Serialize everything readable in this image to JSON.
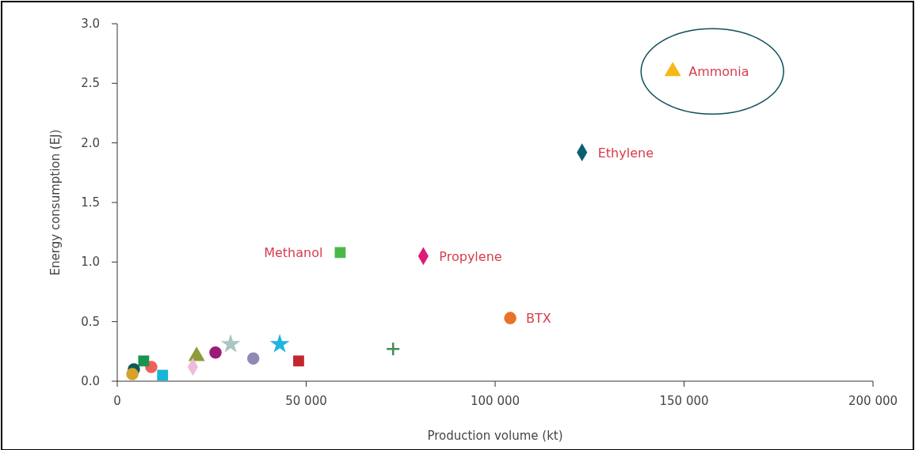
{
  "chart_data": {
    "type": "scatter",
    "xlabel": "Production volume (kt)",
    "ylabel": "Energy consumption (EJ)",
    "xlim": [
      0,
      200000
    ],
    "ylim": [
      0,
      3.0
    ],
    "xticks": [
      0,
      {
        "value": 50000,
        "label": "50 000"
      },
      {
        "value": 100000,
        "label": "100 000"
      },
      {
        "value": 150000,
        "label": "150 000"
      },
      {
        "value": 200000,
        "label": "200 000"
      }
    ],
    "yticks": [
      {
        "value": 0,
        "label": "0.0"
      },
      {
        "value": 0.5,
        "label": "0.5"
      },
      {
        "value": 1,
        "label": "1.0"
      },
      {
        "value": 1.5,
        "label": "1.5"
      },
      {
        "value": 2,
        "label": "2.0"
      },
      {
        "value": 2.5,
        "label": "2.5"
      },
      {
        "value": 3,
        "label": "3.0"
      }
    ],
    "grid": false,
    "series": [
      {
        "name": "Ammonia",
        "color": "#f5b817",
        "marker": "triangle",
        "x": [
          147000
        ],
        "values": [
          2.6
        ]
      },
      {
        "name": "Ethylene",
        "color": "#0b5e73",
        "marker": "diamond",
        "x": [
          123000
        ],
        "values": [
          1.92
        ]
      },
      {
        "name": "Methanol",
        "color": "#4cb848",
        "marker": "square",
        "x": [
          59000
        ],
        "values": [
          1.08
        ]
      },
      {
        "name": "Propylene",
        "color": "#e0197a",
        "marker": "diamond",
        "x": [
          81000
        ],
        "values": [
          1.05
        ]
      },
      {
        "name": "BTX",
        "color": "#e8722a",
        "marker": "circle",
        "x": [
          104000
        ],
        "values": [
          0.53
        ]
      },
      {
        "color": "#3f8f4f",
        "marker": "cross",
        "x": [
          73000
        ],
        "values": [
          0.27
        ]
      },
      {
        "color": "#1fb5e0",
        "marker": "star",
        "x": [
          43000
        ],
        "values": [
          0.31
        ]
      },
      {
        "color": "#c4262e",
        "marker": "square",
        "x": [
          48000
        ],
        "values": [
          0.17
        ]
      },
      {
        "color": "#9189b5",
        "marker": "circle",
        "x": [
          36000
        ],
        "values": [
          0.19
        ]
      },
      {
        "color": "#a9c6c4",
        "marker": "star",
        "x": [
          30000
        ],
        "values": [
          0.31
        ]
      },
      {
        "color": "#9c1a7a",
        "marker": "circle",
        "x": [
          26000
        ],
        "values": [
          0.24
        ]
      },
      {
        "color": "#8c9c3a",
        "marker": "triangle",
        "x": [
          21000
        ],
        "values": [
          0.21
        ]
      },
      {
        "color": "#eebcd9",
        "marker": "diamond",
        "x": [
          20000
        ],
        "values": [
          0.12
        ]
      },
      {
        "color": "#19b4d6",
        "marker": "square",
        "x": [
          12000
        ],
        "values": [
          0.05
        ]
      },
      {
        "color": "#f0605a",
        "marker": "circle",
        "x": [
          9000
        ],
        "values": [
          0.12
        ]
      },
      {
        "color": "#17944d",
        "marker": "square",
        "x": [
          7000
        ],
        "values": [
          0.17
        ]
      },
      {
        "color": "#0e5a55",
        "marker": "circle",
        "x": [
          4400
        ],
        "values": [
          0.1
        ]
      },
      {
        "color": "#d8a12a",
        "marker": "circle",
        "x": [
          4000
        ],
        "values": [
          0.06
        ]
      }
    ]
  }
}
